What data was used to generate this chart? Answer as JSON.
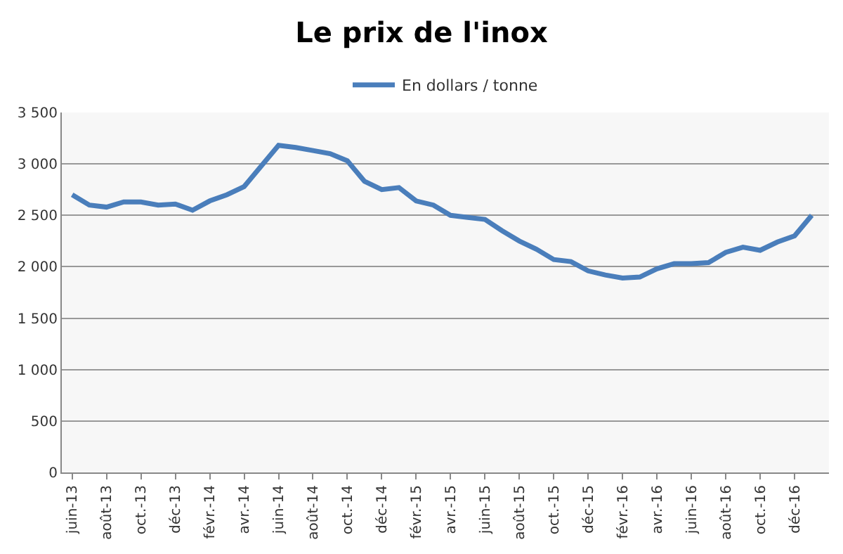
{
  "chart_data": {
    "type": "line",
    "title": "Le prix de l'inox",
    "categories": [
      "juin-13",
      null,
      "août-13",
      null,
      "oct.-13",
      null,
      "déc-13",
      null,
      "févr.-14",
      null,
      "avr.-14",
      null,
      "juin-14",
      null,
      "août-14",
      null,
      "oct.-14",
      null,
      "déc-14",
      null,
      "févr.-15",
      null,
      "avr.-15",
      null,
      "juin-15",
      null,
      "août-15",
      null,
      "oct.-15",
      null,
      "déc-15",
      null,
      "févr.-16",
      null,
      "avr.-16",
      null,
      "juin-16",
      null,
      "août-16",
      null,
      "oct.-16",
      null,
      "déc-16",
      null
    ],
    "series": [
      {
        "name": "En dollars / tonne",
        "color": "#4a7ebb",
        "values": [
          2700,
          2600,
          2580,
          2630,
          2630,
          2600,
          2610,
          2550,
          2640,
          2700,
          2780,
          2980,
          3180,
          3160,
          3130,
          3100,
          3030,
          2830,
          2750,
          2770,
          2640,
          2600,
          2500,
          2480,
          2460,
          2350,
          2250,
          2170,
          2070,
          2050,
          1960,
          1920,
          1890,
          1900,
          1980,
          2030,
          2030,
          2040,
          2140,
          2190,
          2160,
          2240,
          2300,
          2500
        ]
      }
    ],
    "ylim": [
      0,
      3500
    ],
    "yticks": [
      0,
      500,
      {
        "value": 1000,
        "label": "1 000"
      },
      {
        "value": 1500,
        "label": "1 500"
      },
      {
        "value": 2000,
        "label": "2 000"
      },
      {
        "value": 2500,
        "label": "2 500"
      },
      {
        "value": 3000,
        "label": "3 000"
      },
      {
        "value": 3500,
        "label": "3 500"
      }
    ],
    "grid": "y",
    "legend": "top",
    "marker": "none",
    "line_style": "solid"
  }
}
